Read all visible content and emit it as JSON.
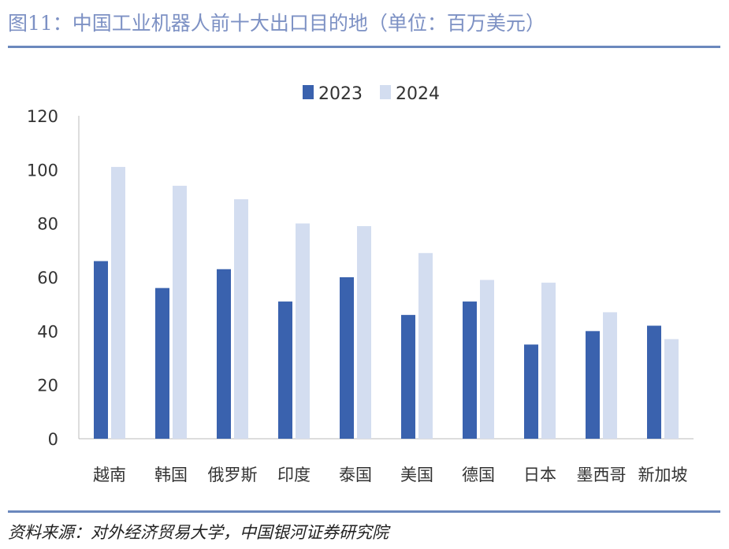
{
  "title": "图11：中国工业机器人前十大出口目的地（单位：百万美元）",
  "source": "资料来源：对外经济贸易大学，中国银河证券研究院",
  "colors": {
    "2023": "#3a62ae",
    "2024": "#d3ddf0"
  },
  "chart_data": {
    "type": "bar",
    "title": "图11：中国工业机器人前十大出口目的地（单位：百万美元）",
    "xlabel": "",
    "ylabel": "",
    "ylim": [
      0,
      120
    ],
    "yticks": [
      "0",
      "20",
      "40",
      "60",
      "80",
      "100",
      "120"
    ],
    "legend": "top-center",
    "categories": [
      "越南",
      "韩国",
      "俄罗斯",
      "印度",
      "泰国",
      "美国",
      "德国",
      "日本",
      "墨西哥",
      "新加坡"
    ],
    "series": [
      {
        "name": "2023",
        "values": [
          66,
          56,
          63,
          51,
          60,
          46,
          51,
          35,
          40,
          42
        ]
      },
      {
        "name": "2024",
        "values": [
          101,
          94,
          89,
          80,
          79,
          69,
          59,
          58,
          47,
          37
        ]
      }
    ]
  }
}
